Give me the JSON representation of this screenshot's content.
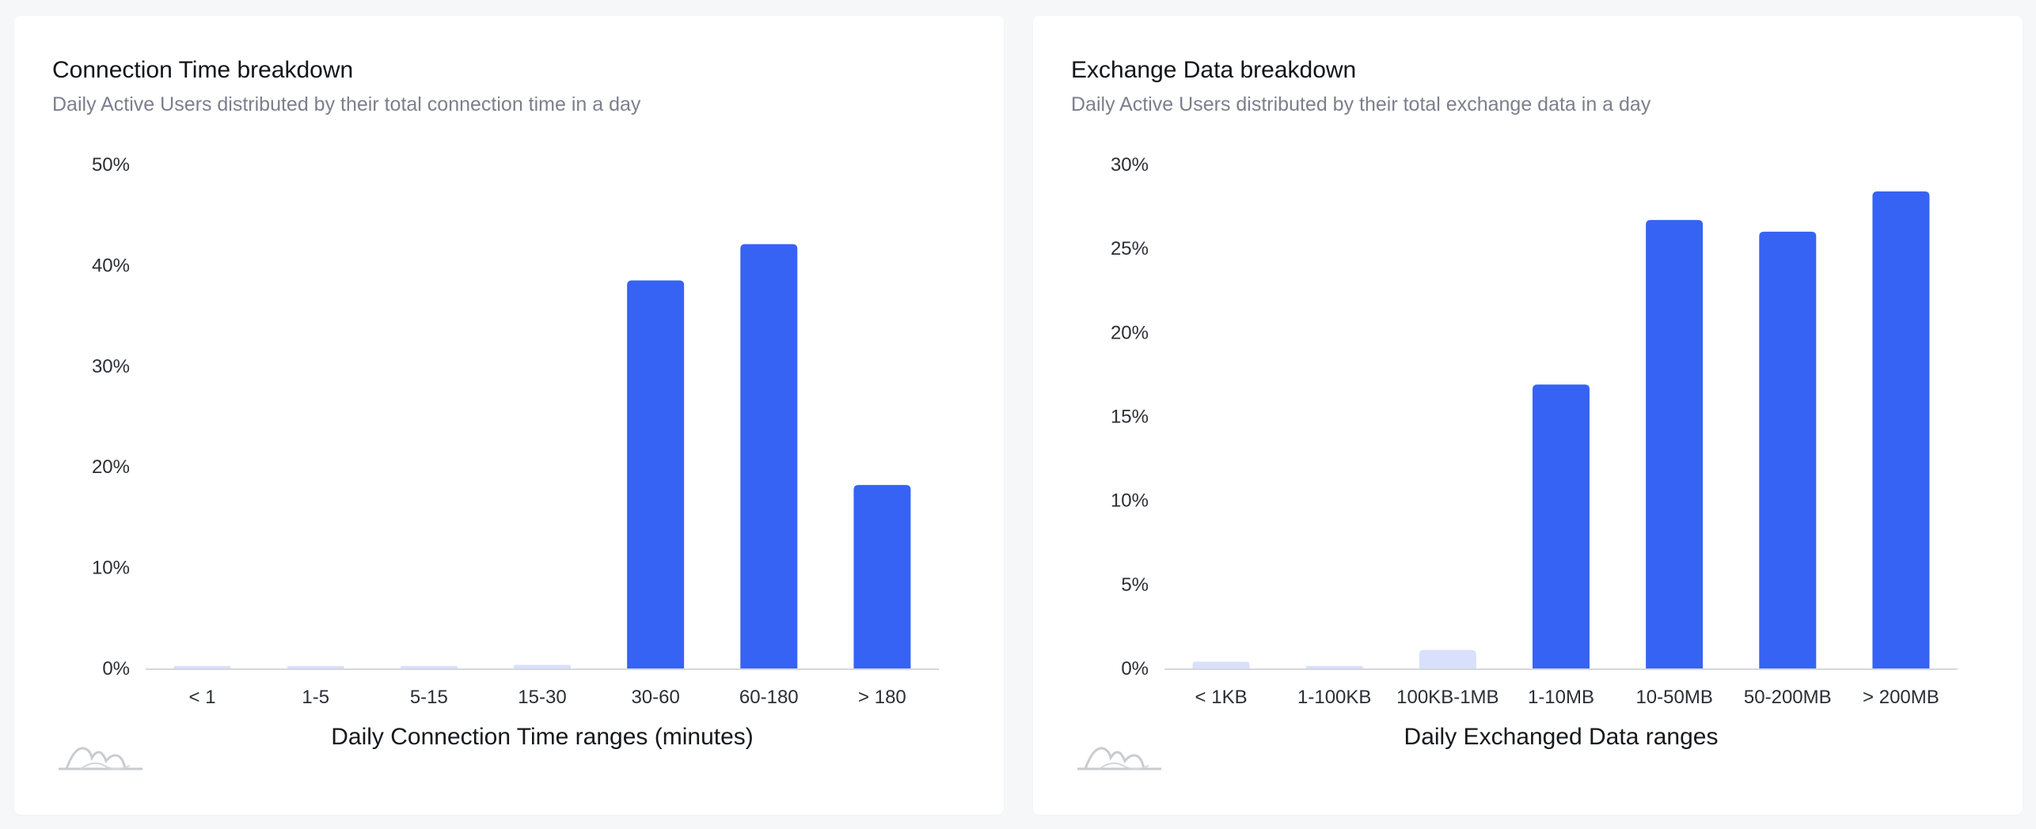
{
  "panels": [
    {
      "title": "Connection Time breakdown",
      "subtitle": "Daily Active Users distributed by their total connection time in a day"
    },
    {
      "title": "Exchange Data breakdown",
      "subtitle": "Daily Active Users distributed by their total exchange data in a day"
    }
  ],
  "colors": {
    "bar": "#3763f4",
    "bar_light": "#d8e0fb",
    "axis": "#d5d7dc",
    "logo": "#c9cbd0"
  },
  "logo_icon": "mountain-logo-icon",
  "chart_data": [
    {
      "type": "bar",
      "title": "Connection Time breakdown",
      "subtitle": "Daily Active Users distributed by their total connection time in a day",
      "xlabel": "Daily Connection Time ranges (minutes)",
      "ylabel": "",
      "categories": [
        "< 1",
        "1-5",
        "5-15",
        "15-30",
        "30-60",
        "60-180",
        "> 180"
      ],
      "values": [
        0.1,
        0.05,
        0.15,
        0.35,
        38.5,
        42.1,
        18.2
      ],
      "ylim": [
        0,
        50
      ],
      "yticks": [
        0,
        10,
        20,
        30,
        40,
        50
      ],
      "ytick_labels": [
        "0%",
        "10%",
        "20%",
        "30%",
        "40%",
        "50%"
      ],
      "grid": false,
      "legend": "none"
    },
    {
      "type": "bar",
      "title": "Exchange Data breakdown",
      "subtitle": "Daily Active Users distributed by their total exchange data in a day",
      "xlabel": "Daily Exchanged Data ranges",
      "ylabel": "",
      "categories": [
        "< 1KB",
        "1-100KB",
        "100KB-1MB",
        "1-10MB",
        "10-50MB",
        "50-200MB",
        "> 200MB"
      ],
      "values": [
        0.4,
        0.05,
        1.1,
        16.9,
        26.7,
        26.0,
        28.4
      ],
      "ylim": [
        0,
        30
      ],
      "yticks": [
        0,
        5,
        10,
        15,
        20,
        25,
        30
      ],
      "ytick_labels": [
        "0%",
        "5%",
        "10%",
        "15%",
        "20%",
        "25%",
        "30%"
      ],
      "grid": false,
      "legend": "none"
    }
  ]
}
